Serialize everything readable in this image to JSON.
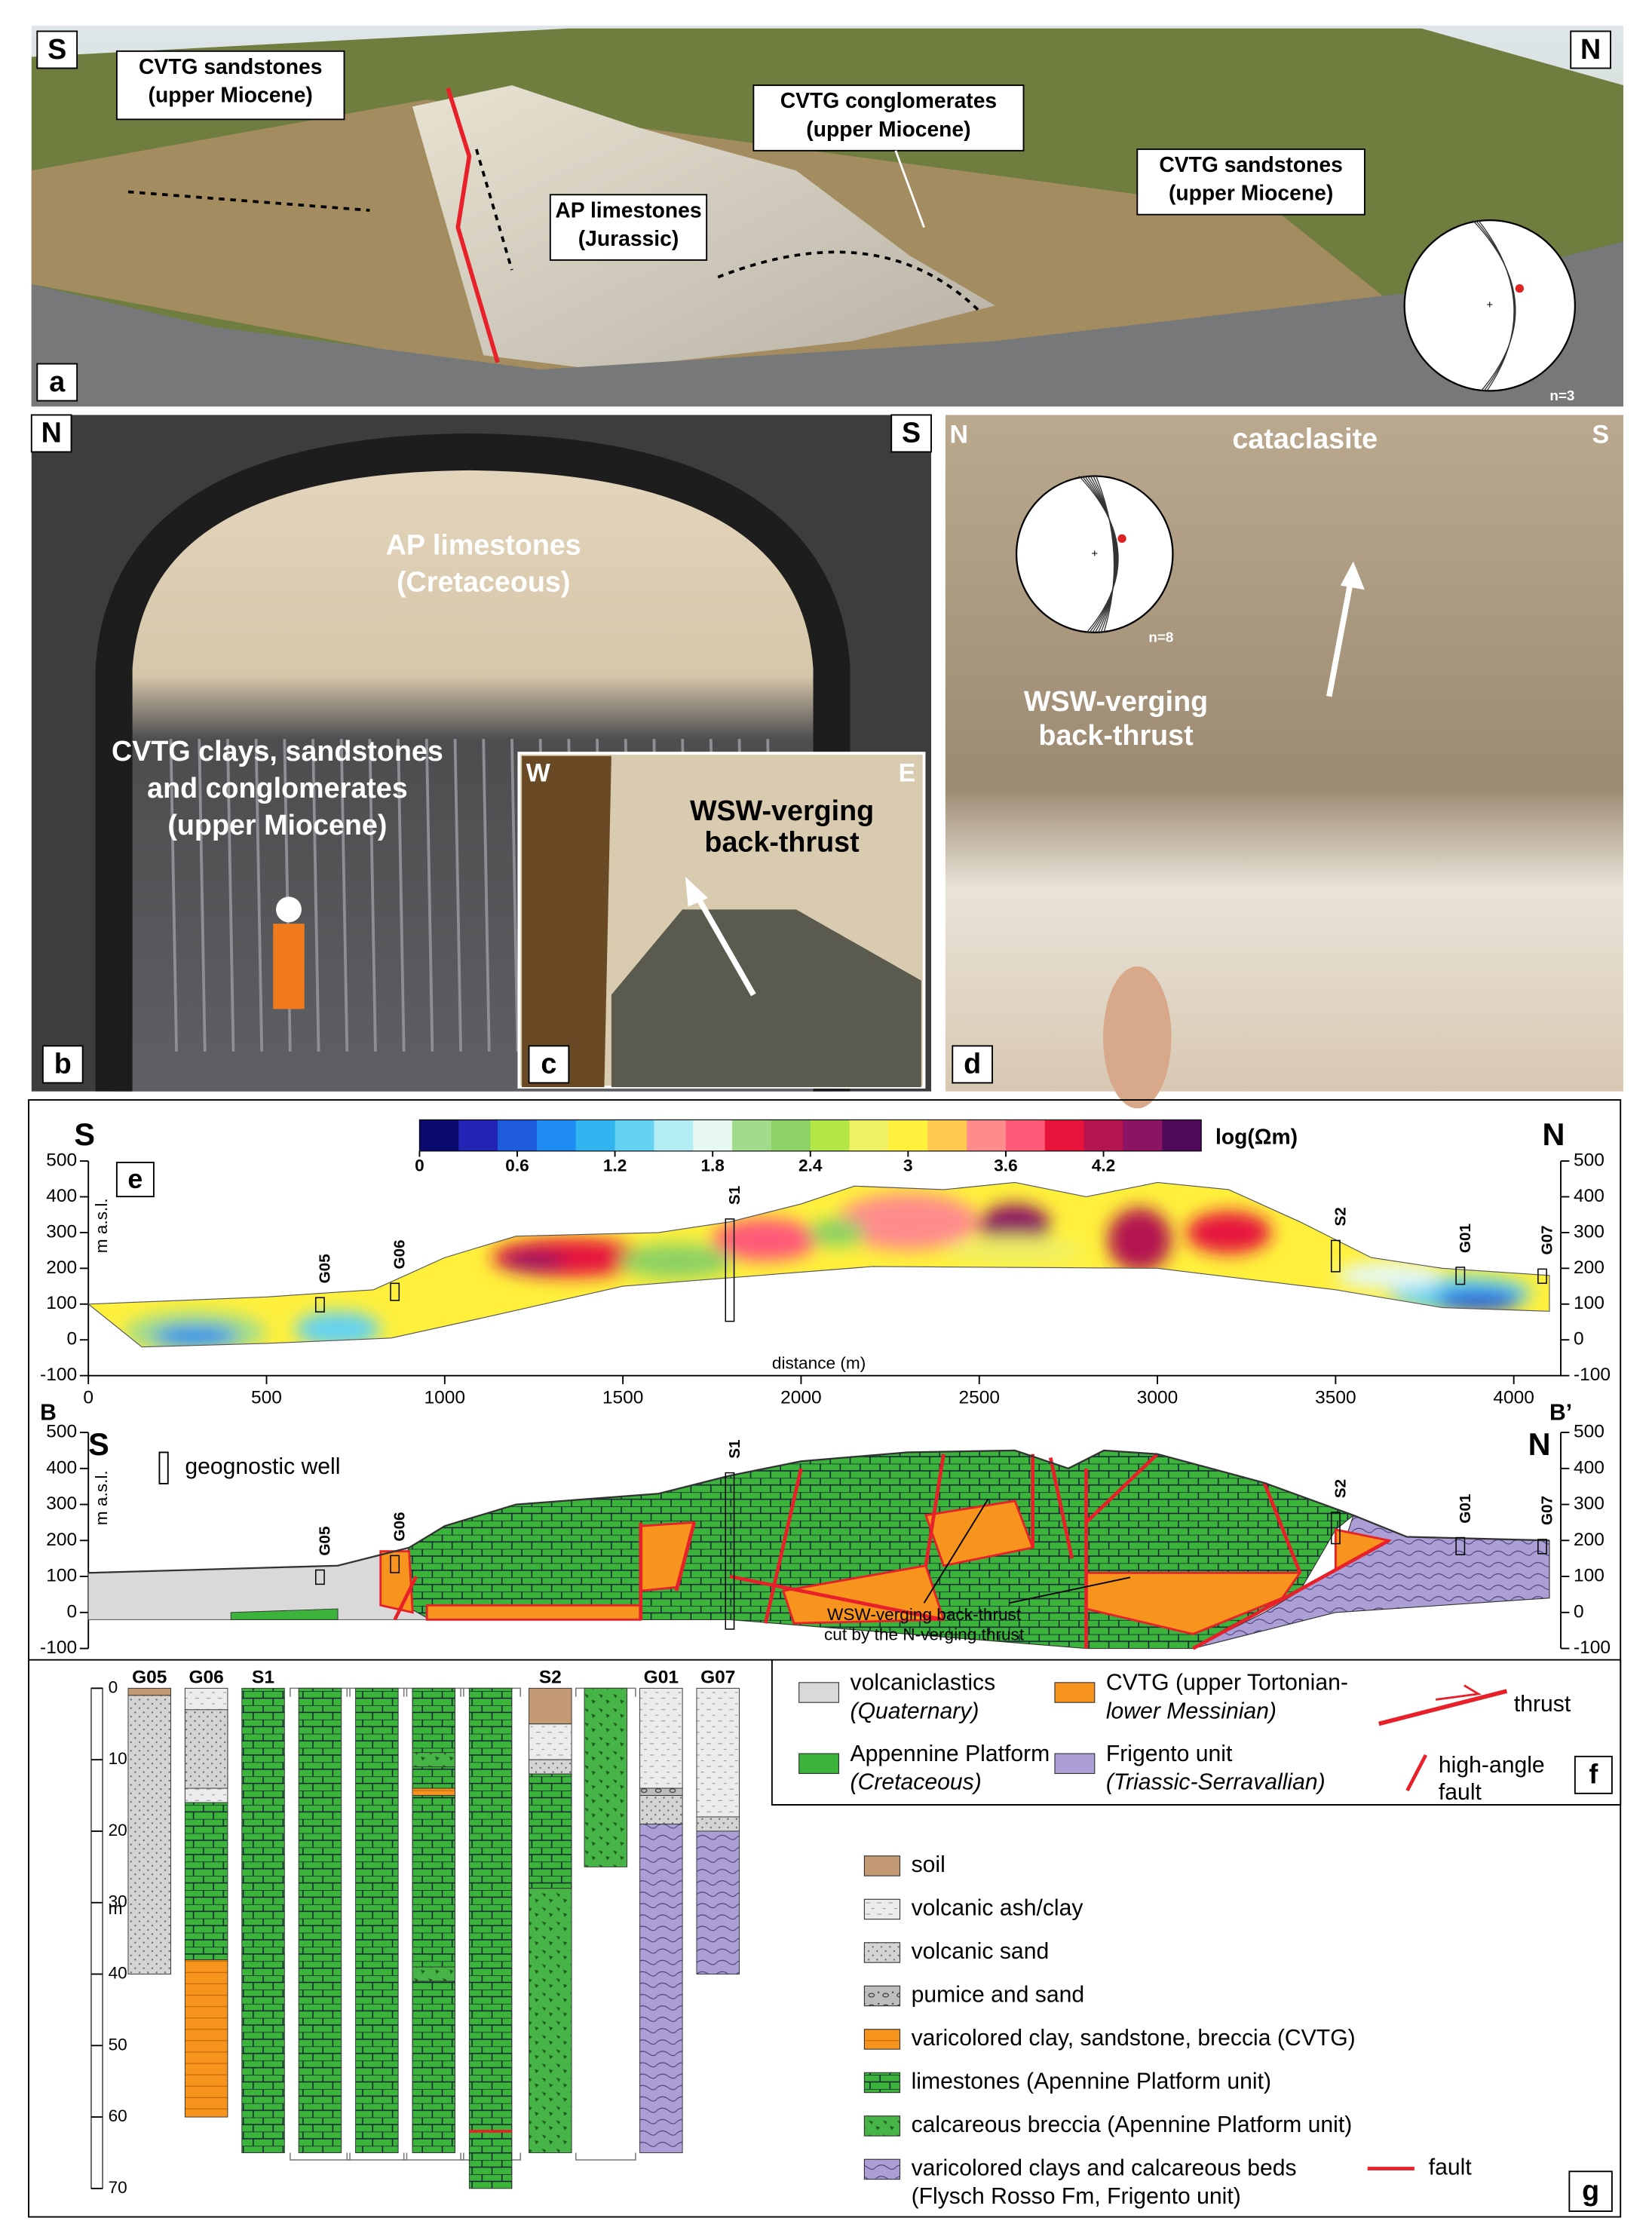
{
  "panel_a": {
    "label": "a",
    "left": "S",
    "right": "N",
    "notes": [
      [
        "CVTG sandstones",
        "(upper Miocene)"
      ],
      [
        "AP limestones",
        "(Jurassic)"
      ],
      [
        "CVTG conglomerates",
        "(upper Miocene)"
      ],
      [
        "CVTG sandstones",
        "(upper Miocene)"
      ]
    ],
    "stereonet": "n=3"
  },
  "panel_b": {
    "label": "b",
    "left": "N",
    "right": "S",
    "notes": [
      [
        "AP limestones",
        "(Cretaceous)"
      ],
      [
        "CVTG clays, sandstones",
        "and conglomerates",
        "(upper Miocene)"
      ]
    ]
  },
  "panel_c": {
    "label": "c",
    "left": "W",
    "right": "E",
    "note": [
      "WSW-verging",
      "back-thrust"
    ]
  },
  "panel_d": {
    "label": "d",
    "left": "N",
    "right": "S",
    "top": "cataclasite",
    "stereonet": "n=8",
    "note": [
      "WSW-verging",
      "back-thrust"
    ]
  },
  "panel_e": {
    "label": "e",
    "left": "S",
    "right": "N",
    "colorbar_lim": [
      0,
      4.8
    ],
    "colorbar_ticks": [
      0,
      0.6,
      1.2,
      1.8,
      2.4,
      3,
      3.6,
      4.2
    ],
    "colorbar_colors": [
      "#0a0a6e",
      "#2323b4",
      "#1e5adc",
      "#1e8cf0",
      "#32b4f0",
      "#64d2f0",
      "#b4ecf4",
      "#e6f8f0",
      "#a0dc8c",
      "#8cd264",
      "#b4e646",
      "#f0f064",
      "#fff03c",
      "#ffc850",
      "#ff8c8c",
      "#ff5a78",
      "#e6143c",
      "#b41450",
      "#8c1464",
      "#500a5a"
    ],
    "colorbar_unit": "log(Ωm)",
    "y_label": "m a.s.l.",
    "ylim": [
      -100,
      500
    ],
    "yticks": [
      -100,
      0,
      100,
      200,
      300,
      400,
      500
    ],
    "xlim": [
      0,
      4100
    ],
    "xticks": [
      0,
      500,
      1000,
      1500,
      2000,
      2500,
      3000,
      3500,
      4000
    ],
    "x_label": "distance (m)",
    "wells": [
      "G05",
      "G06",
      "S1",
      "S2",
      "G01",
      "G07"
    ]
  },
  "panel_f": {
    "label": "f",
    "ends": [
      "B",
      "B’"
    ],
    "left": "S",
    "right": "N",
    "well_key": "geognostic well",
    "y_label": "m a.s.l.",
    "ylim": [
      -100,
      500
    ],
    "yticks": [
      -100,
      0,
      100,
      200,
      300,
      400,
      500
    ],
    "wells": [
      "G05",
      "G06",
      "S1",
      "S2",
      "G01",
      "G07"
    ],
    "note": [
      "WSW-verging back-thrust",
      "cut by the N-verging thrust"
    ],
    "legend": [
      {
        "name": [
          "volcaniclastics",
          "(Quaternary)"
        ],
        "color": "#d9d9d9"
      },
      {
        "name": [
          "CVTG (upper Tortonian-",
          "lower Messinian)"
        ],
        "color": "#f7941d"
      },
      {
        "name": [
          "Appennine Platform",
          "(Cretaceous)"
        ],
        "color": "#3cb43c"
      },
      {
        "name": [
          "Frigento unit",
          "(Triassic-Serravallian)"
        ],
        "color": "#ab9fd6"
      }
    ],
    "thrust": "thrust",
    "fault": [
      "high-angle",
      "fault"
    ]
  },
  "panel_g": {
    "label": "g",
    "wells": [
      "G05",
      "G06",
      "S1",
      "S2",
      "G01",
      "G07"
    ],
    "ylim": [
      0,
      70
    ],
    "yticks": [
      0,
      10,
      20,
      30,
      40,
      50,
      60,
      70
    ],
    "unit": "m",
    "legend": [
      {
        "name": [
          "soil"
        ],
        "color": "#c49a74"
      },
      {
        "name": [
          "volcanic ash/clay"
        ],
        "color": "#ececec"
      },
      {
        "name": [
          "volcanic sand"
        ],
        "color": "#d4d4d4"
      },
      {
        "name": [
          "pumice and sand"
        ],
        "color": "#bdbdbd"
      },
      {
        "name": [
          "varicolored clay, sandstone, breccia (CVTG)"
        ],
        "color": "#f7941d"
      },
      {
        "name": [
          "limestones (Apennine Platform unit)"
        ],
        "color": "#3cb43c"
      },
      {
        "name": [
          "calcareous breccia (Apennine Platform unit)"
        ],
        "color": "#46b446"
      },
      {
        "name": [
          "varicolored clays and calcareous beds",
          "(Flysch Rosso Fm, Frigento unit)"
        ],
        "color": "#ab9fd6"
      }
    ],
    "fault": "fault",
    "fault_color": "#e8202a"
  }
}
